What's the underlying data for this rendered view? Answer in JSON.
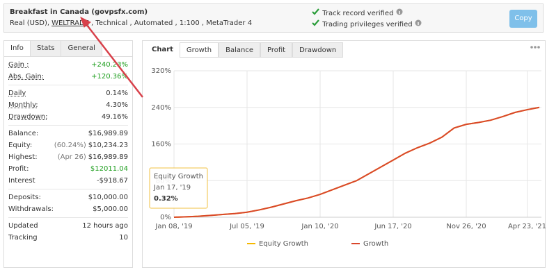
{
  "header": {
    "title": "Breakfast in Canada (govpsfx.com)",
    "account_prefix": "Real (USD),",
    "broker": "WELTRADE",
    "account_suffix": ", Technical , Automated , 1:100 , MetaTrader 4",
    "verified": [
      "Track record verified",
      "Trading privileges verified"
    ],
    "button": "Copy"
  },
  "stats": {
    "tabs": [
      "Info",
      "Stats",
      "General"
    ],
    "groups": [
      [
        {
          "label": "Gain :",
          "value": "+240.23%",
          "color": "#1e9e1e"
        },
        {
          "label": "Abs. Gain:",
          "value": "+120.36%",
          "color": "#1e9e1e"
        }
      ],
      [
        {
          "label": "Daily",
          "value": "0.14%"
        },
        {
          "label": "Monthly:",
          "value": "4.30%"
        },
        {
          "label": "Drawdown:",
          "value": "49.16%"
        }
      ],
      [
        {
          "label": "Balance:",
          "value": "$16,989.89"
        },
        {
          "label": "Equity:",
          "note": "(60.24%)",
          "value": "$10,234.23"
        },
        {
          "label": "Highest:",
          "note": "(Apr 26)",
          "value": "$16,989.89"
        },
        {
          "label": "Profit:",
          "value": "$12011.04",
          "color": "#1e9e1e"
        },
        {
          "label": "Interest",
          "value": "-$918.67"
        }
      ],
      [
        {
          "label": "Deposits:",
          "value": "$10,000.00"
        },
        {
          "label": "Withdrawals:",
          "value": "$5,000.00"
        }
      ],
      [
        {
          "label": "Updated",
          "value": "12 hours ago"
        },
        {
          "label": "Tracking",
          "value": "10"
        }
      ]
    ]
  },
  "chart_tabs": [
    "Chart",
    "Growth",
    "Balance",
    "Profit",
    "Drawdown"
  ],
  "tooltip": {
    "title": "Equity Growth",
    "date": "Jan 17, '19",
    "value": "0.32%"
  },
  "chart_data": {
    "type": "line",
    "categories": [
      "Jan 08, '19",
      null,
      null,
      null,
      null,
      null,
      "Jul 05, '19",
      null,
      null,
      null,
      null,
      null,
      "Jan 10, '20",
      null,
      null,
      null,
      null,
      null,
      "Jun 17, '20",
      null,
      null,
      null,
      null,
      null,
      "Nov 26, '20",
      null,
      null,
      null,
      null,
      "Apr 23, '21",
      null
    ],
    "series": [
      {
        "name": "Equity Growth",
        "color": "#f5b800",
        "values": [
          0,
          1,
          2,
          4,
          6,
          8,
          11,
          16,
          22,
          29,
          36,
          42,
          50,
          60,
          70,
          80,
          95,
          110,
          125,
          140,
          152,
          162,
          175,
          195,
          203,
          207,
          212,
          220,
          229,
          235,
          240
        ]
      },
      {
        "name": "Growth",
        "color": "#d9472b",
        "values": [
          0,
          1,
          2,
          4,
          6,
          8,
          11,
          16,
          22,
          29,
          36,
          42,
          50,
          60,
          70,
          80,
          95,
          110,
          125,
          140,
          152,
          162,
          175,
          195,
          203,
          207,
          212,
          220,
          229,
          235,
          240
        ]
      }
    ],
    "ylim": [
      0,
      320
    ],
    "yticks": [
      {
        "value": 0,
        "label": "0%"
      },
      {
        "value": 80,
        "label": "80%"
      },
      {
        "value": 160,
        "label": "160%"
      },
      {
        "value": 240,
        "label": "240%"
      },
      {
        "value": 320,
        "label": "320%"
      }
    ],
    "grid": true
  }
}
